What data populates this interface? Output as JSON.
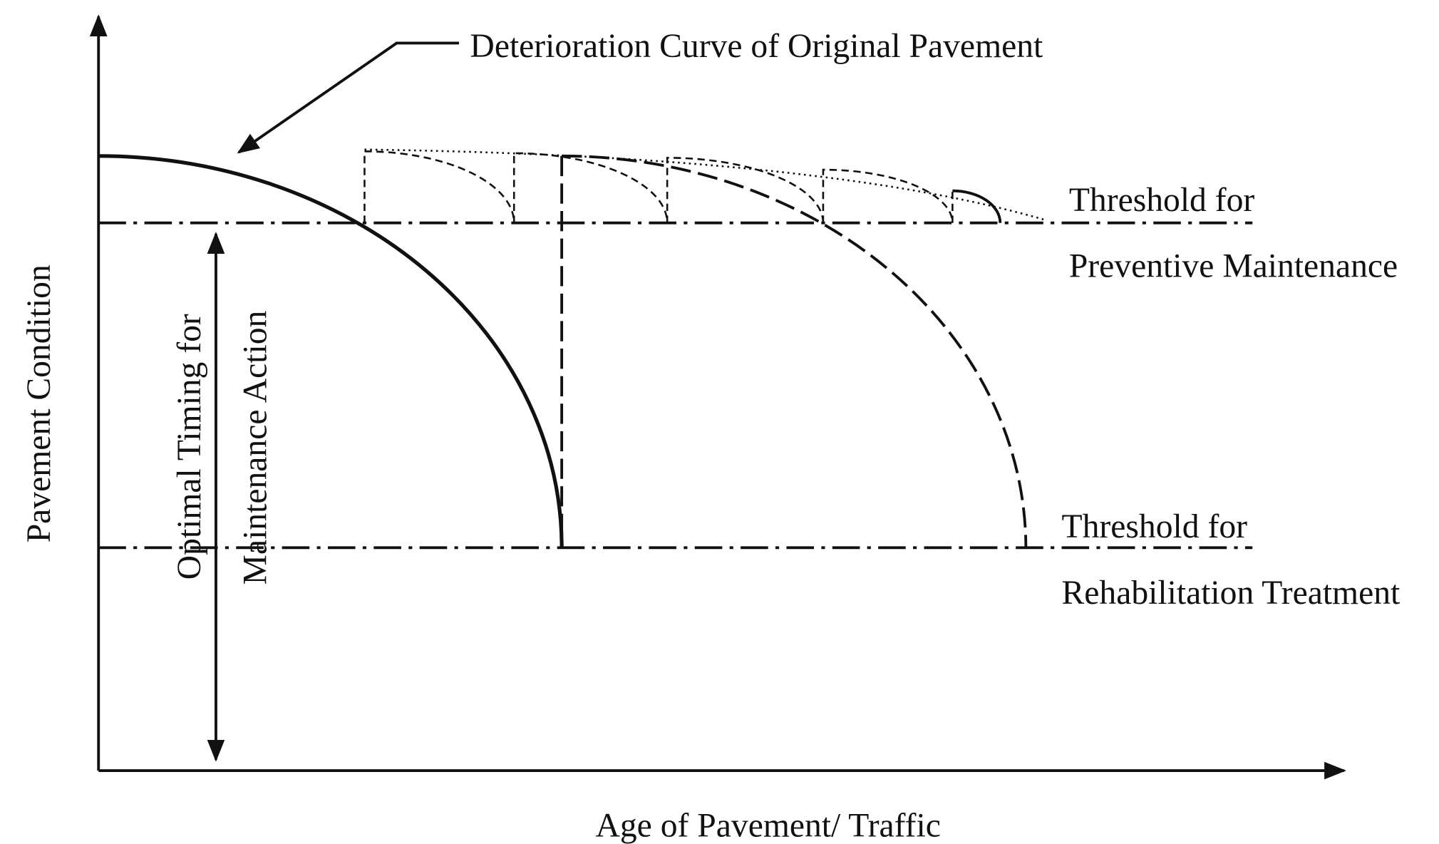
{
  "title": "Deterioration Curve of Original Pavement",
  "thresholds": [
    {
      "line1": "Threshold for",
      "line2": "Preventive Maintenance"
    },
    {
      "line1": "Threshold for",
      "line2": "Rehabilitation Treatment"
    }
  ],
  "axes": {
    "y_label": "Pavement Condition",
    "x_label": "Age of Pavement/ Traffic"
  },
  "timing": {
    "line1": "Optimal Timing for",
    "line2": "Maintenance Action"
  }
}
